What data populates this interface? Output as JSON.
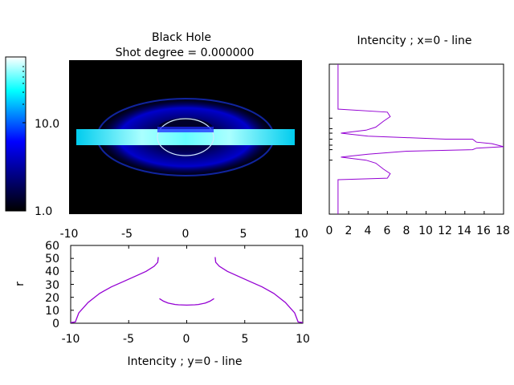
{
  "main": {
    "title_line1": "Black Hole",
    "title_line2": "Shot degree = 0.000000",
    "x_ticks": [
      "-10",
      "-5",
      "0",
      "5",
      "10"
    ],
    "colorbar_ticks": [
      "10.0",
      "1.0"
    ],
    "colormap": [
      "#000000",
      "#0000ff",
      "#00ffff",
      "#ffffff"
    ]
  },
  "right": {
    "title": "Intencity ; x=0 - line",
    "x_ticks": [
      "0",
      "2",
      "4",
      "6",
      "8",
      "10",
      "12",
      "14",
      "16",
      "18"
    ]
  },
  "bottom": {
    "xlabel": "Intencity ; y=0 - line",
    "ylabel": "r",
    "x_ticks": [
      "-10",
      "-5",
      "0",
      "5",
      "10"
    ],
    "y_ticks": [
      "0",
      "10",
      "20",
      "30",
      "40",
      "50",
      "60"
    ]
  },
  "chart_data": [
    {
      "type": "heatmap",
      "title": "Black Hole\nShot degree = 0.000000",
      "xlim": [
        -10,
        10
      ],
      "color_scale": "log",
      "colorbar_range": [
        1.0,
        40.0
      ],
      "colorbar_labels": [
        "1.0",
        "10.0"
      ],
      "colors": [
        "#000000",
        "#0000ff",
        "#00ffff",
        "#ffffff"
      ],
      "features": {
        "disk_band_half_width": 9.5,
        "shadow_ring_radius_x": 2.4,
        "lensed_glow_radius_x": 7
      }
    },
    {
      "type": "line",
      "title": "Intencity ; x=0 - line",
      "xlim": [
        0,
        18
      ],
      "color": "#9400d3",
      "points": [
        [
          0.9,
          0.0
        ],
        [
          0.9,
          0.3
        ],
        [
          1.0,
          0.3
        ],
        [
          6.0,
          0.32
        ],
        [
          6.3,
          0.35
        ],
        [
          5.6,
          0.38
        ],
        [
          4.8,
          0.42
        ],
        [
          3.8,
          0.44
        ],
        [
          1.2,
          0.46
        ],
        [
          4.0,
          0.48
        ],
        [
          8.0,
          0.49
        ],
        [
          12.0,
          0.5
        ],
        [
          14.8,
          0.5
        ],
        [
          15.2,
          0.52
        ],
        [
          16.8,
          0.53
        ],
        [
          18.0,
          0.55
        ],
        [
          15.2,
          0.56
        ],
        [
          14.8,
          0.57
        ],
        [
          8.0,
          0.58
        ],
        [
          4.0,
          0.6
        ],
        [
          1.2,
          0.62
        ],
        [
          3.8,
          0.64
        ],
        [
          4.8,
          0.66
        ],
        [
          5.6,
          0.7
        ],
        [
          6.3,
          0.73
        ],
        [
          6.0,
          0.76
        ],
        [
          1.0,
          0.77
        ],
        [
          0.9,
          0.77
        ],
        [
          0.9,
          1.0
        ]
      ]
    },
    {
      "type": "line",
      "xlabel": "Intencity ; y=0 - line",
      "ylabel": "r",
      "xlim": [
        -10,
        10
      ],
      "ylim": [
        0,
        60
      ],
      "color": "#9400d3",
      "segments": [
        [
          [
            -10,
            0.5
          ],
          [
            -9.6,
            1
          ],
          [
            -9.3,
            8
          ],
          [
            -8.5,
            16
          ],
          [
            -7.5,
            23
          ],
          [
            -6.5,
            28
          ],
          [
            -5.5,
            32
          ],
          [
            -4.5,
            36
          ],
          [
            -3.5,
            40
          ],
          [
            -2.8,
            44
          ],
          [
            -2.5,
            47
          ],
          [
            -2.45,
            51
          ]
        ],
        [
          [
            -2.35,
            19
          ],
          [
            -2.0,
            17
          ],
          [
            -1.6,
            15.5
          ],
          [
            -1.0,
            14.5
          ],
          [
            -0.7,
            14.2
          ],
          [
            0,
            14.0
          ],
          [
            0.7,
            14.2
          ],
          [
            1.0,
            14.5
          ],
          [
            1.6,
            15.5
          ],
          [
            2.0,
            17
          ],
          [
            2.35,
            19
          ]
        ],
        [
          [
            2.45,
            51
          ],
          [
            2.5,
            47
          ],
          [
            2.8,
            44
          ],
          [
            3.5,
            40
          ],
          [
            4.5,
            36
          ],
          [
            5.5,
            32
          ],
          [
            6.5,
            28
          ],
          [
            7.5,
            23
          ],
          [
            8.5,
            16
          ],
          [
            9.3,
            8
          ],
          [
            9.6,
            1
          ],
          [
            10,
            0.5
          ]
        ]
      ]
    }
  ]
}
